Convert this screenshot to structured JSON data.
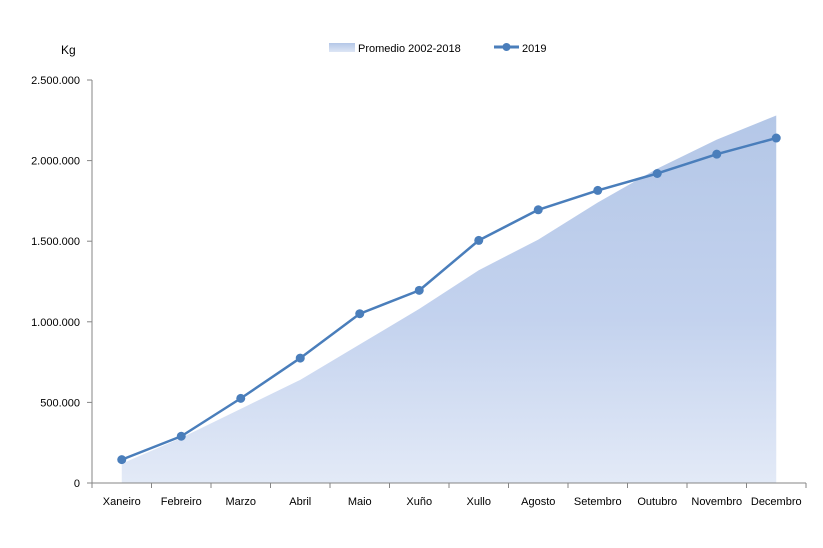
{
  "chart_data": {
    "type": "area",
    "unit_label": "Kg",
    "categories": [
      "Xaneiro",
      "Febreiro",
      "Marzo",
      "Abril",
      "Maio",
      "Xuño",
      "Xullo",
      "Agosto",
      "Setembro",
      "Outubro",
      "Novembro",
      "Decembro"
    ],
    "y_ticks": [
      "0",
      "500.000",
      "1.000.000",
      "1.500.000",
      "2.000.000",
      "2.500.000"
    ],
    "ylim": [
      0,
      2500000
    ],
    "grid": false,
    "legend_position": "top-center",
    "series": [
      {
        "name": "Promedio 2002-2018",
        "type": "area",
        "color": "#b4c7e7",
        "values": [
          120000,
          280000,
          460000,
          640000,
          860000,
          1080000,
          1320000,
          1510000,
          1740000,
          1950000,
          2130000,
          2280000
        ]
      },
      {
        "name": "2019",
        "type": "line",
        "color": "#4a7ebb",
        "values": [
          145000,
          290000,
          525000,
          775000,
          1050000,
          1195000,
          1505000,
          1695000,
          1815000,
          1920000,
          2040000,
          2140000
        ]
      }
    ]
  }
}
